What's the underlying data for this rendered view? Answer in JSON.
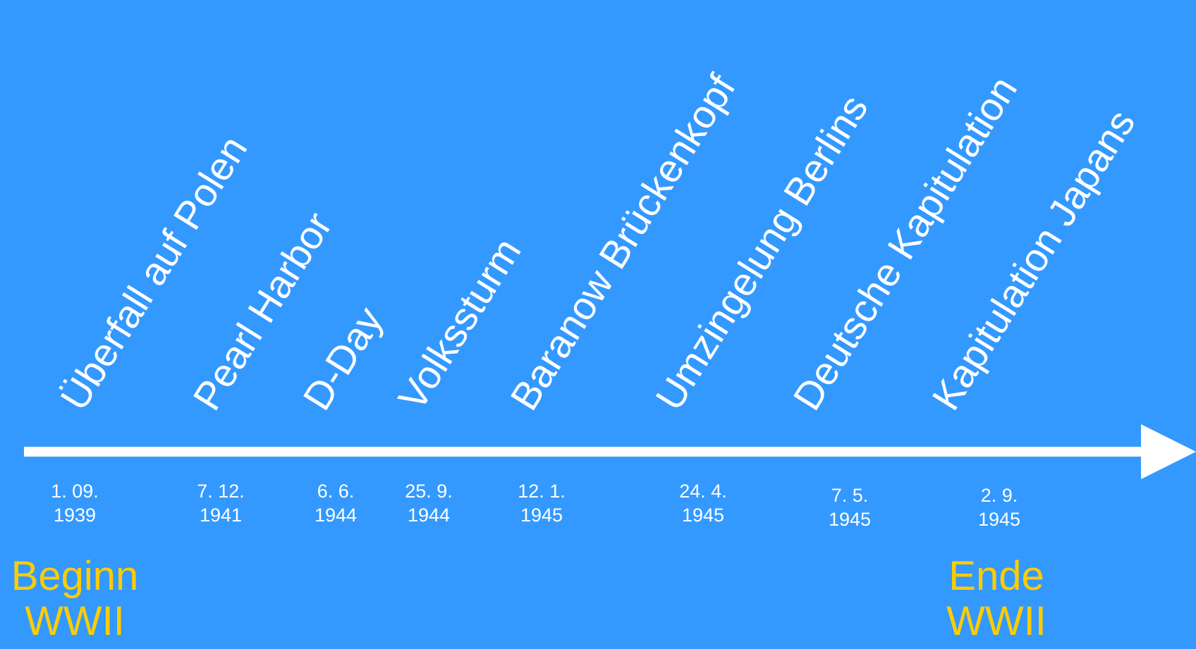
{
  "colors": {
    "background": "#3399ff",
    "text": "#ffffff",
    "marker": "#ffcc00",
    "axis": "#ffffff"
  },
  "events": [
    {
      "label": "Überfall auf Polen",
      "date_line1": "1. 09.",
      "date_line2": "1939"
    },
    {
      "label": "Pearl Harbor",
      "date_line1": "7. 12.",
      "date_line2": "1941"
    },
    {
      "label": "D-Day",
      "date_line1": "6. 6.",
      "date_line2": "1944"
    },
    {
      "label": "Volkssturm",
      "date_line1": "25. 9.",
      "date_line2": "1944"
    },
    {
      "label": "Baranow Brückenkopf",
      "date_line1": "12. 1.",
      "date_line2": "1945"
    },
    {
      "label": "Umzingelung Berlins",
      "date_line1": "24. 4.",
      "date_line2": "1945"
    },
    {
      "label": "Deutsche Kapitulation",
      "date_line1": "7. 5.",
      "date_line2": "1945"
    },
    {
      "label": "Kapitulation Japans",
      "date_line1": "2. 9.",
      "date_line2": "1945"
    }
  ],
  "markers": {
    "start": {
      "line1": "Beginn",
      "line2": "WWII"
    },
    "end": {
      "line1": "Ende",
      "line2": "WWII"
    }
  }
}
